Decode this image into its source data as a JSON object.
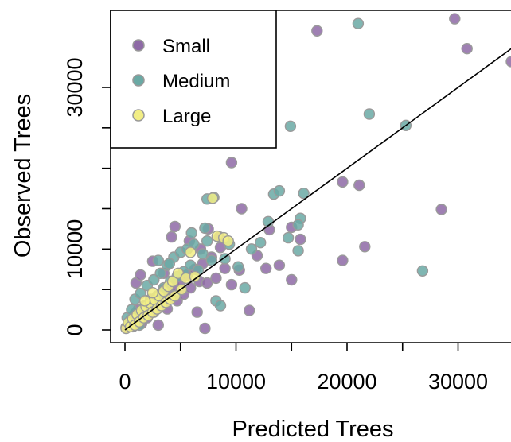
{
  "chart_data": {
    "type": "scatter",
    "title": "",
    "xlabel": "Predicted Trees",
    "ylabel": "Observed Trees",
    "xlim": [
      -500,
      35500
    ],
    "ylim": [
      -1500,
      40000
    ],
    "x_ticks": [
      0,
      5000,
      10000,
      15000,
      20000,
      25000,
      30000,
      35000
    ],
    "x_tick_labels": [
      "0",
      "10000",
      "20000",
      "30000"
    ],
    "x_tick_label_values": [
      0,
      10000,
      20000,
      30000
    ],
    "y_ticks": [
      0,
      5000,
      10000,
      15000,
      20000,
      25000,
      30000
    ],
    "y_tick_labels": [
      "0",
      "10000",
      "30000"
    ],
    "y_tick_label_values": [
      0,
      10000,
      30000
    ],
    "reference_line": {
      "type": "identity",
      "from": [
        0,
        0
      ],
      "to": [
        35500,
        35500
      ]
    },
    "legend": {
      "position": "top-left"
    },
    "grid": false,
    "series": [
      {
        "name": "Small",
        "color": "#8e6aa6",
        "points": [
          [
            100,
            300
          ],
          [
            300,
            600
          ],
          [
            500,
            1200
          ],
          [
            700,
            400
          ],
          [
            900,
            2000
          ],
          [
            1200,
            2500
          ],
          [
            1500,
            800
          ],
          [
            1800,
            3000
          ],
          [
            2000,
            1500
          ],
          [
            2300,
            3800
          ],
          [
            2600,
            2200
          ],
          [
            2900,
            4200
          ],
          [
            3200,
            3000
          ],
          [
            3500,
            5000
          ],
          [
            3800,
            2600
          ],
          [
            4100,
            4600
          ],
          [
            4400,
            5500
          ],
          [
            4700,
            3600
          ],
          [
            5000,
            6000
          ],
          [
            5300,
            4400
          ],
          [
            5600,
            6800
          ],
          [
            5900,
            5200
          ],
          [
            6300,
            7500
          ],
          [
            6700,
            6000
          ],
          [
            7000,
            8200
          ],
          [
            7400,
            5800
          ],
          [
            7800,
            9000
          ],
          [
            8200,
            6400
          ],
          [
            8600,
            10200
          ],
          [
            9000,
            7600
          ],
          [
            1000,
            5800
          ],
          [
            1400,
            6800
          ],
          [
            2500,
            8500
          ],
          [
            3500,
            7000
          ],
          [
            4200,
            11500
          ],
          [
            4500,
            12800
          ],
          [
            5800,
            11000
          ],
          [
            6800,
            10000
          ],
          [
            7500,
            12500
          ],
          [
            8500,
            11500
          ],
          [
            9600,
            5600
          ],
          [
            10300,
            7400
          ],
          [
            11200,
            2400
          ],
          [
            11900,
            9200
          ],
          [
            12700,
            7600
          ],
          [
            13000,
            12400
          ],
          [
            13900,
            8000
          ],
          [
            15000,
            6200
          ],
          [
            15800,
            11200
          ],
          [
            6500,
            2200
          ],
          [
            7200,
            200
          ],
          [
            3000,
            600
          ],
          [
            9600,
            20700
          ],
          [
            10500,
            15000
          ],
          [
            15000,
            12700
          ],
          [
            19600,
            18300
          ],
          [
            21100,
            17900
          ],
          [
            19600,
            8600
          ],
          [
            21600,
            10300
          ],
          [
            28500,
            14900
          ],
          [
            17300,
            37000
          ],
          [
            29700,
            38500
          ],
          [
            30800,
            34800
          ],
          [
            34800,
            33200
          ]
        ]
      },
      {
        "name": "Medium",
        "color": "#6aa9a4",
        "points": [
          [
            200,
            1500
          ],
          [
            400,
            800
          ],
          [
            600,
            2500
          ],
          [
            900,
            3800
          ],
          [
            1100,
            1800
          ],
          [
            1400,
            4500
          ],
          [
            1700,
            2800
          ],
          [
            2000,
            5500
          ],
          [
            2300,
            3400
          ],
          [
            2600,
            6200
          ],
          [
            2900,
            4000
          ],
          [
            3200,
            7000
          ],
          [
            3500,
            5200
          ],
          [
            3800,
            8000
          ],
          [
            4100,
            6000
          ],
          [
            4400,
            9000
          ],
          [
            4700,
            6600
          ],
          [
            5000,
            9600
          ],
          [
            5300,
            7200
          ],
          [
            5600,
            10000
          ],
          [
            5900,
            8000
          ],
          [
            6200,
            10600
          ],
          [
            6600,
            7400
          ],
          [
            7000,
            9400
          ],
          [
            7400,
            11000
          ],
          [
            7800,
            8600
          ],
          [
            8200,
            3600
          ],
          [
            8600,
            3000
          ],
          [
            9000,
            8800
          ],
          [
            9400,
            10600
          ],
          [
            3000,
            8600
          ],
          [
            4000,
            8200
          ],
          [
            6000,
            12000
          ],
          [
            7200,
            12600
          ],
          [
            10200,
            7800
          ],
          [
            10800,
            5200
          ],
          [
            11400,
            10000
          ],
          [
            12200,
            10800
          ],
          [
            12900,
            13400
          ],
          [
            13400,
            16800
          ],
          [
            13900,
            17200
          ],
          [
            14700,
            11400
          ],
          [
            15600,
            9800
          ],
          [
            15800,
            13800
          ],
          [
            16100,
            16900
          ],
          [
            15600,
            13000
          ],
          [
            14900,
            25200
          ],
          [
            22000,
            26700
          ],
          [
            25300,
            25300
          ],
          [
            26800,
            7300
          ],
          [
            21000,
            37900
          ],
          [
            7400,
            16200
          ],
          [
            8000,
            16400
          ],
          [
            1300,
            600
          ]
        ]
      },
      {
        "name": "Large",
        "color": "#f2ee85",
        "points": [
          [
            100,
            200
          ],
          [
            300,
            900
          ],
          [
            500,
            400
          ],
          [
            700,
            1400
          ],
          [
            900,
            600
          ],
          [
            1100,
            1900
          ],
          [
            1300,
            1000
          ],
          [
            1500,
            2400
          ],
          [
            1700,
            1500
          ],
          [
            1900,
            2900
          ],
          [
            2100,
            1800
          ],
          [
            2300,
            3300
          ],
          [
            2500,
            2200
          ],
          [
            2700,
            3700
          ],
          [
            2900,
            2600
          ],
          [
            3100,
            4200
          ],
          [
            3300,
            3000
          ],
          [
            3500,
            4800
          ],
          [
            3700,
            3400
          ],
          [
            3900,
            5400
          ],
          [
            4100,
            3800
          ],
          [
            4300,
            6000
          ],
          [
            4500,
            4200
          ],
          [
            4800,
            7000
          ],
          [
            5100,
            5000
          ],
          [
            5500,
            6400
          ],
          [
            5900,
            9600
          ],
          [
            6300,
            6600
          ],
          [
            8300,
            11600
          ],
          [
            8900,
            11400
          ],
          [
            9300,
            11000
          ],
          [
            7900,
            16300
          ],
          [
            2500,
            4600
          ],
          [
            1800,
            3600
          ]
        ]
      }
    ]
  }
}
